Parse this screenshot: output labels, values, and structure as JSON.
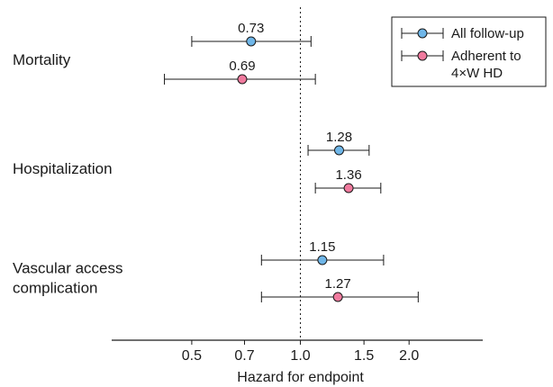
{
  "chart_data": {
    "type": "forest",
    "xlabel": "Hazard for endpoint",
    "x_scale": "log",
    "reference_value": 1.0,
    "xlim": [
      0.3,
      3.2
    ],
    "xticks": [
      {
        "value": 0.5,
        "label": "0.5"
      },
      {
        "value": 0.7,
        "label": "0.7"
      },
      {
        "value": 1.0,
        "label": "1.0"
      },
      {
        "value": 1.5,
        "label": "1.5"
      },
      {
        "value": 2.0,
        "label": "2.0"
      }
    ],
    "legend": {
      "placement": "top-right",
      "entries": [
        {
          "series": "all",
          "lines": [
            "All follow-up"
          ]
        },
        {
          "series": "adherent",
          "lines": [
            "Adherent to",
            "4×W HD"
          ]
        }
      ]
    },
    "series": [
      {
        "key": "all",
        "name": "All follow-up",
        "color": "#6fb6e8"
      },
      {
        "key": "adherent",
        "name": "Adherent to 4×W HD",
        "color": "#f07a9e"
      }
    ],
    "groups": [
      {
        "label_lines": [
          "Mortality"
        ],
        "rows": [
          {
            "series": "all",
            "estimate": 0.73,
            "label": "0.73",
            "lower": 0.5,
            "upper": 1.07
          },
          {
            "series": "adherent",
            "estimate": 0.69,
            "label": "0.69",
            "lower": 0.42,
            "upper": 1.1
          }
        ]
      },
      {
        "label_lines": [
          "Hospitalization"
        ],
        "rows": [
          {
            "series": "all",
            "estimate": 1.28,
            "label": "1.28",
            "lower": 1.05,
            "upper": 1.55
          },
          {
            "series": "adherent",
            "estimate": 1.36,
            "label": "1.36",
            "lower": 1.1,
            "upper": 1.67
          }
        ]
      },
      {
        "label_lines": [
          "Vascular access",
          "complication"
        ],
        "rows": [
          {
            "series": "all",
            "estimate": 1.15,
            "label": "1.15",
            "lower": 0.78,
            "upper": 1.7
          },
          {
            "series": "adherent",
            "estimate": 1.27,
            "label": "1.27",
            "lower": 0.78,
            "upper": 2.12
          }
        ]
      }
    ]
  }
}
